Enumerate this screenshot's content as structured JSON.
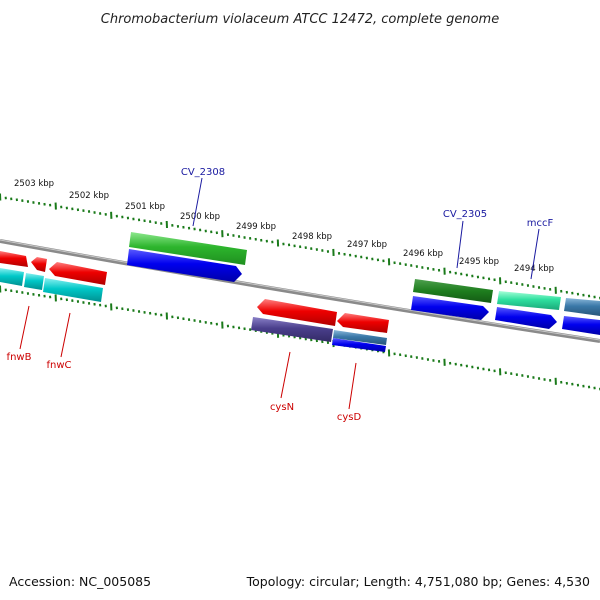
{
  "title": "Chromobacterium violaceum ATCC 12472, complete genome",
  "accession": "Accession: NC_005085",
  "topology": "Topology: circular; Length: 4,751,080 bp; Genes: 4,530",
  "scale_labels": [
    "2503 kbp",
    "2502 kbp",
    "2501 kbp",
    "2500 kbp",
    "2499 kbp",
    "2498 kbp",
    "2497 kbp",
    "2496 kbp",
    "2495 kbp",
    "2494 kbp"
  ],
  "top_labels": [
    "CV_2308",
    "CV_2305",
    "mccF"
  ],
  "bottom_labels": [
    "fnwB",
    "fnwC",
    "cysN",
    "cysD"
  ],
  "colors": {
    "forward_cds": "#2db52d",
    "forward_cds_dark": "#1e7d1e",
    "forward_blue": "#0000ee",
    "reverse_cds": "#ee0000",
    "reverse_cyan": "#00c8c8",
    "reverse_purple": "#4a3f8c",
    "teal": "#2fe0a0",
    "steel": "#3a78a8",
    "tick": "#1a7a1a",
    "backbone": "#8a8a8a",
    "top_label": "#1a1aa0",
    "bottom_label": "#cc0000"
  }
}
